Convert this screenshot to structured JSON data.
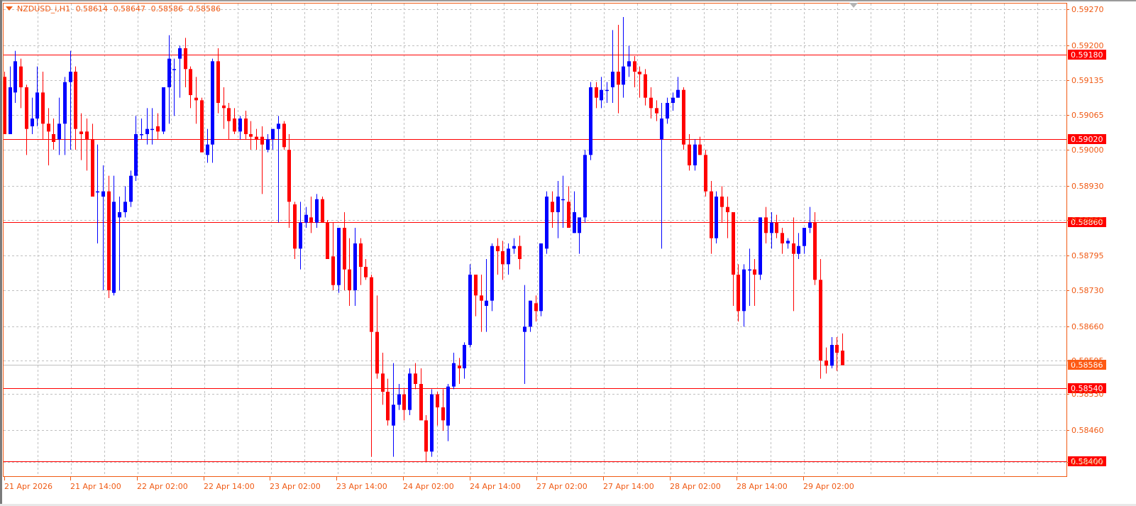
{
  "header": {
    "symbol_timeframe": "NZDUSD_i,H1",
    "open": "0.58614",
    "high": "0.58647",
    "low": "0.58586",
    "close": "0.58586"
  },
  "colors": {
    "frame": "#f05a14",
    "axis_text": "#f05a14",
    "grid": "#c0c0c0",
    "bull": "#0000ff",
    "bear": "#ff0000",
    "level_line": "#ff0000",
    "level_label_bg": "#ff0000",
    "bid_label_bg": "#ff5a14",
    "bid_line": "#c0c0c0",
    "label_text": "#ffffff"
  },
  "price_axis": {
    "ticks": [
      "0.59270",
      "0.59200",
      "0.59135",
      "0.59065",
      "0.59000",
      "0.58930",
      "0.58865",
      "0.58795",
      "0.58730",
      "0.58660",
      "0.58595",
      "0.58530",
      "0.58460",
      "0.58400"
    ],
    "level_labels": [
      "0.59180",
      "0.59020",
      "0.58860",
      "0.58540",
      "0.58400"
    ],
    "bid_label": "0.58586"
  },
  "time_axis": {
    "labels": [
      "21 Apr 2026",
      "21 Apr 14:00",
      "22 Apr 02:00",
      "22 Apr 14:00",
      "23 Apr 02:00",
      "23 Apr 14:00",
      "24 Apr 02:00",
      "24 Apr 14:00",
      "27 Apr 02:00",
      "27 Apr 14:00",
      "28 Apr 02:00",
      "28 Apr 14:00",
      "29 Apr 02:00"
    ]
  },
  "chart_data": {
    "type": "candlestick",
    "title": "NZDUSD_i,H1",
    "xlabel": "",
    "ylabel": "",
    "ylim": [
      0.58385,
      0.5929
    ],
    "grid": true,
    "legend": "none",
    "horizontal_levels": [
      0.5918,
      0.5902,
      0.5886,
      0.5854,
      0.584
    ],
    "current_bid": 0.58586,
    "x_tick_labels": [
      "21 Apr 2026",
      "21 Apr 14:00",
      "22 Apr 02:00",
      "22 Apr 14:00",
      "23 Apr 02:00",
      "23 Apr 14:00",
      "24 Apr 02:00",
      "24 Apr 14:00",
      "27 Apr 02:00",
      "27 Apr 14:00",
      "28 Apr 02:00",
      "28 Apr 14:00",
      "29 Apr 02:00"
    ],
    "y_tick_labels": [
      "0.59270",
      "0.59200",
      "0.59135",
      "0.59065",
      "0.59000",
      "0.58930",
      "0.58865",
      "0.58795",
      "0.58730",
      "0.58660",
      "0.58595",
      "0.58530",
      "0.58460",
      "0.58400"
    ],
    "candles_ohlc": [
      [
        0.5914,
        0.5915,
        0.5903,
        0.5903
      ],
      [
        0.5903,
        0.5916,
        0.5903,
        0.5912
      ],
      [
        0.5911,
        0.5919,
        0.5909,
        0.5917
      ],
      [
        0.5916,
        0.59175,
        0.5908,
        0.5912
      ],
      [
        0.5912,
        0.59125,
        0.5899,
        0.5904
      ],
      [
        0.59045,
        0.591,
        0.5903,
        0.5906
      ],
      [
        0.5906,
        0.5916,
        0.59045,
        0.5911
      ],
      [
        0.5911,
        0.5915,
        0.5902,
        0.5905
      ],
      [
        0.5905,
        0.5908,
        0.5897,
        0.59035
      ],
      [
        0.5903,
        0.5906,
        0.59,
        0.59015
      ],
      [
        0.5902,
        0.591,
        0.5899,
        0.5905
      ],
      [
        0.5905,
        0.5914,
        0.5899,
        0.5913
      ],
      [
        0.5913,
        0.5919,
        0.59,
        0.5915
      ],
      [
        0.5915,
        0.5916,
        0.59,
        0.5904
      ],
      [
        0.59035,
        0.5907,
        0.5898,
        0.5903
      ],
      [
        0.59035,
        0.5906,
        0.5896,
        0.5902
      ],
      [
        0.5902,
        0.5905,
        0.5896,
        0.5891
      ],
      [
        0.5892,
        0.5901,
        0.5882,
        0.5892
      ],
      [
        0.5891,
        0.5897,
        0.5873,
        0.5892
      ],
      [
        0.5892,
        0.5895,
        0.58715,
        0.5873
      ],
      [
        0.58725,
        0.5895,
        0.5872,
        0.589
      ],
      [
        0.5887,
        0.5891,
        0.5873,
        0.5888
      ],
      [
        0.5888,
        0.5893,
        0.5887,
        0.589
      ],
      [
        0.589,
        0.5896,
        0.5889,
        0.5895
      ],
      [
        0.5895,
        0.59065,
        0.5894,
        0.5903
      ],
      [
        0.5903,
        0.5906,
        0.5902,
        0.5903
      ],
      [
        0.5903,
        0.5908,
        0.5901,
        0.5904
      ],
      [
        0.5904,
        0.5908,
        0.5901,
        0.5904
      ],
      [
        0.59045,
        0.5907,
        0.5902,
        0.59035
      ],
      [
        0.59035,
        0.5912,
        0.5903,
        0.5912
      ],
      [
        0.5912,
        0.5922,
        0.5905,
        0.59175
      ],
      [
        0.59155,
        0.59175,
        0.59065,
        0.59155
      ],
      [
        0.59175,
        0.592,
        0.591,
        0.59195
      ],
      [
        0.59195,
        0.59215,
        0.5912,
        0.59155
      ],
      [
        0.59155,
        0.5916,
        0.5908,
        0.59105
      ],
      [
        0.591,
        0.5914,
        0.5905,
        0.59095
      ],
      [
        0.59095,
        0.591,
        0.59,
        0.58995
      ],
      [
        0.5899,
        0.5904,
        0.58975,
        0.5901
      ],
      [
        0.5901,
        0.59175,
        0.58975,
        0.5917
      ],
      [
        0.5917,
        0.59195,
        0.5907,
        0.5909
      ],
      [
        0.59085,
        0.5912,
        0.5904,
        0.5908
      ],
      [
        0.5908,
        0.5909,
        0.5902,
        0.59055
      ],
      [
        0.5906,
        0.5908,
        0.5903,
        0.59035
      ],
      [
        0.59035,
        0.59065,
        0.5902,
        0.5906
      ],
      [
        0.5906,
        0.59075,
        0.5902,
        0.5903
      ],
      [
        0.5903,
        0.59055,
        0.59,
        0.59025
      ],
      [
        0.59025,
        0.5904,
        0.59,
        0.5902
      ],
      [
        0.59025,
        0.59045,
        0.58915,
        0.5901
      ],
      [
        0.59,
        0.5903,
        0.58995,
        0.5902
      ],
      [
        0.5902,
        0.59035,
        0.59,
        0.5904
      ],
      [
        0.5904,
        0.59065,
        0.5886,
        0.5905
      ],
      [
        0.5905,
        0.59055,
        0.59,
        0.59005
      ],
      [
        0.59,
        0.5903,
        0.5885,
        0.589
      ],
      [
        0.58895,
        0.589,
        0.5879,
        0.5881
      ],
      [
        0.5881,
        0.589,
        0.5877,
        0.5886
      ],
      [
        0.5886,
        0.5889,
        0.5885,
        0.58875
      ],
      [
        0.5887,
        0.5891,
        0.5884,
        0.5886
      ],
      [
        0.5886,
        0.58915,
        0.5885,
        0.58905
      ],
      [
        0.58905,
        0.5891,
        0.5886,
        0.5886
      ],
      [
        0.5886,
        0.58865,
        0.58795,
        0.5879
      ],
      [
        0.58795,
        0.5886,
        0.5873,
        0.5874
      ],
      [
        0.5874,
        0.5884,
        0.58725,
        0.5885
      ],
      [
        0.5885,
        0.5888,
        0.5873,
        0.5877
      ],
      [
        0.5877,
        0.5883,
        0.587,
        0.5873
      ],
      [
        0.5873,
        0.5885,
        0.587,
        0.5882
      ],
      [
        0.5882,
        0.5883,
        0.5874,
        0.58775
      ],
      [
        0.58775,
        0.5879,
        0.5875,
        0.58755
      ],
      [
        0.58755,
        0.5876,
        0.5841,
        0.5865
      ],
      [
        0.5865,
        0.5872,
        0.5856,
        0.5857
      ],
      [
        0.5857,
        0.5861,
        0.5851,
        0.58535
      ],
      [
        0.58535,
        0.5856,
        0.5847,
        0.5848
      ],
      [
        0.5847,
        0.5859,
        0.5841,
        0.5851
      ],
      [
        0.5851,
        0.5855,
        0.585,
        0.5853
      ],
      [
        0.5853,
        0.5854,
        0.5848,
        0.585
      ],
      [
        0.585,
        0.5858,
        0.5849,
        0.5857
      ],
      [
        0.5857,
        0.5859,
        0.5854,
        0.5855
      ],
      [
        0.5855,
        0.5858,
        0.5849,
        0.5848
      ],
      [
        0.5848,
        0.5849,
        0.584,
        0.5842
      ],
      [
        0.5842,
        0.5854,
        0.5841,
        0.5853
      ],
      [
        0.5853,
        0.58535,
        0.5847,
        0.58505
      ],
      [
        0.58505,
        0.5854,
        0.5846,
        0.5848
      ],
      [
        0.5847,
        0.5855,
        0.5844,
        0.58545
      ],
      [
        0.58545,
        0.5861,
        0.5854,
        0.5859
      ],
      [
        0.58585,
        0.586,
        0.5855,
        0.5858
      ],
      [
        0.5858,
        0.5863,
        0.5856,
        0.58625
      ],
      [
        0.58625,
        0.5878,
        0.5862,
        0.5876
      ],
      [
        0.5876,
        0.5874,
        0.5868,
        0.5872
      ],
      [
        0.5872,
        0.5876,
        0.5865,
        0.5871
      ],
      [
        0.587,
        0.5879,
        0.5865,
        0.5871
      ],
      [
        0.5871,
        0.5882,
        0.5869,
        0.58815
      ],
      [
        0.58815,
        0.5883,
        0.5876,
        0.58805
      ],
      [
        0.58805,
        0.58825,
        0.5875,
        0.5878
      ],
      [
        0.5878,
        0.5882,
        0.5876,
        0.5881
      ],
      [
        0.5881,
        0.5883,
        0.588,
        0.58815
      ],
      [
        0.58815,
        0.58835,
        0.5877,
        0.5879
      ],
      [
        0.5865,
        0.5874,
        0.5855,
        0.5866
      ],
      [
        0.5866,
        0.5871,
        0.5865,
        0.5871
      ],
      [
        0.58705,
        0.5872,
        0.5867,
        0.5869
      ],
      [
        0.5869,
        0.5881,
        0.5868,
        0.5882
      ],
      [
        0.5881,
        0.5892,
        0.588,
        0.5891
      ],
      [
        0.589,
        0.5892,
        0.5885,
        0.5888
      ],
      [
        0.5888,
        0.5894,
        0.5883,
        0.5891
      ],
      [
        0.58905,
        0.5895,
        0.5885,
        0.58905
      ],
      [
        0.589,
        0.5893,
        0.5885,
        0.5885
      ],
      [
        0.5884,
        0.5892,
        0.5884,
        0.5888
      ],
      [
        0.5884,
        0.5886,
        0.588,
        0.5887
      ],
      [
        0.5887,
        0.59,
        0.5886,
        0.5899
      ],
      [
        0.5899,
        0.5913,
        0.5898,
        0.5912
      ],
      [
        0.5912,
        0.5913,
        0.5908,
        0.591
      ],
      [
        0.59095,
        0.5914,
        0.5908,
        0.59115
      ],
      [
        0.59115,
        0.5913,
        0.5909,
        0.59115
      ],
      [
        0.5912,
        0.5923,
        0.5909,
        0.5915
      ],
      [
        0.5915,
        0.5924,
        0.5907,
        0.59125
      ],
      [
        0.59125,
        0.59255,
        0.591,
        0.5916
      ],
      [
        0.5916,
        0.592,
        0.5914,
        0.5917
      ],
      [
        0.5917,
        0.5918,
        0.5912,
        0.5915
      ],
      [
        0.5915,
        0.5916,
        0.591,
        0.59145
      ],
      [
        0.59145,
        0.59155,
        0.59085,
        0.591
      ],
      [
        0.591,
        0.5912,
        0.5906,
        0.5908
      ],
      [
        0.5908,
        0.59095,
        0.59055,
        0.5907
      ],
      [
        0.5902,
        0.5909,
        0.5881,
        0.5906
      ],
      [
        0.5906,
        0.591,
        0.5905,
        0.5909
      ],
      [
        0.5909,
        0.5911,
        0.59075,
        0.591
      ],
      [
        0.591,
        0.5914,
        0.591,
        0.59115
      ],
      [
        0.59115,
        0.5912,
        0.59,
        0.5901
      ],
      [
        0.5901,
        0.5903,
        0.5896,
        0.5897
      ],
      [
        0.5897,
        0.5902,
        0.5896,
        0.5901
      ],
      [
        0.5901,
        0.59025,
        0.5899,
        0.5899
      ],
      [
        0.5899,
        0.59,
        0.5891,
        0.5892
      ],
      [
        0.5892,
        0.5894,
        0.588,
        0.5883
      ],
      [
        0.5883,
        0.5892,
        0.5882,
        0.5891
      ],
      [
        0.5891,
        0.5893,
        0.5886,
        0.5889
      ],
      [
        0.5889,
        0.5891,
        0.5883,
        0.5888
      ],
      [
        0.5888,
        0.5885,
        0.587,
        0.5876
      ],
      [
        0.5876,
        0.5878,
        0.5867,
        0.5869
      ],
      [
        0.5869,
        0.5878,
        0.5866,
        0.5877
      ],
      [
        0.5877,
        0.5881,
        0.587,
        0.5877
      ],
      [
        0.5877,
        0.5879,
        0.587,
        0.5876
      ],
      [
        0.5876,
        0.5887,
        0.5875,
        0.5887
      ],
      [
        0.5887,
        0.5889,
        0.5882,
        0.5884
      ],
      [
        0.5884,
        0.5888,
        0.5881,
        0.5886
      ],
      [
        0.5886,
        0.58875,
        0.5883,
        0.5884
      ],
      [
        0.5884,
        0.5885,
        0.588,
        0.5882
      ],
      [
        0.5882,
        0.5883,
        0.5881,
        0.58825
      ],
      [
        0.5882,
        0.5887,
        0.5869,
        0.588
      ],
      [
        0.588,
        0.5884,
        0.5879,
        0.58815
      ],
      [
        0.58815,
        0.5885,
        0.588,
        0.5885
      ],
      [
        0.5885,
        0.5889,
        0.5884,
        0.5886
      ],
      [
        0.5886,
        0.5888,
        0.5874,
        0.5875
      ],
      [
        0.5875,
        0.5879,
        0.5856,
        0.58595
      ],
      [
        0.58595,
        0.5862,
        0.5857,
        0.58585
      ],
      [
        0.58585,
        0.5864,
        0.5858,
        0.58625
      ],
      [
        0.58625,
        0.5864,
        0.58575,
        0.5861
      ],
      [
        0.58614,
        0.58647,
        0.58586,
        0.58586
      ]
    ]
  }
}
